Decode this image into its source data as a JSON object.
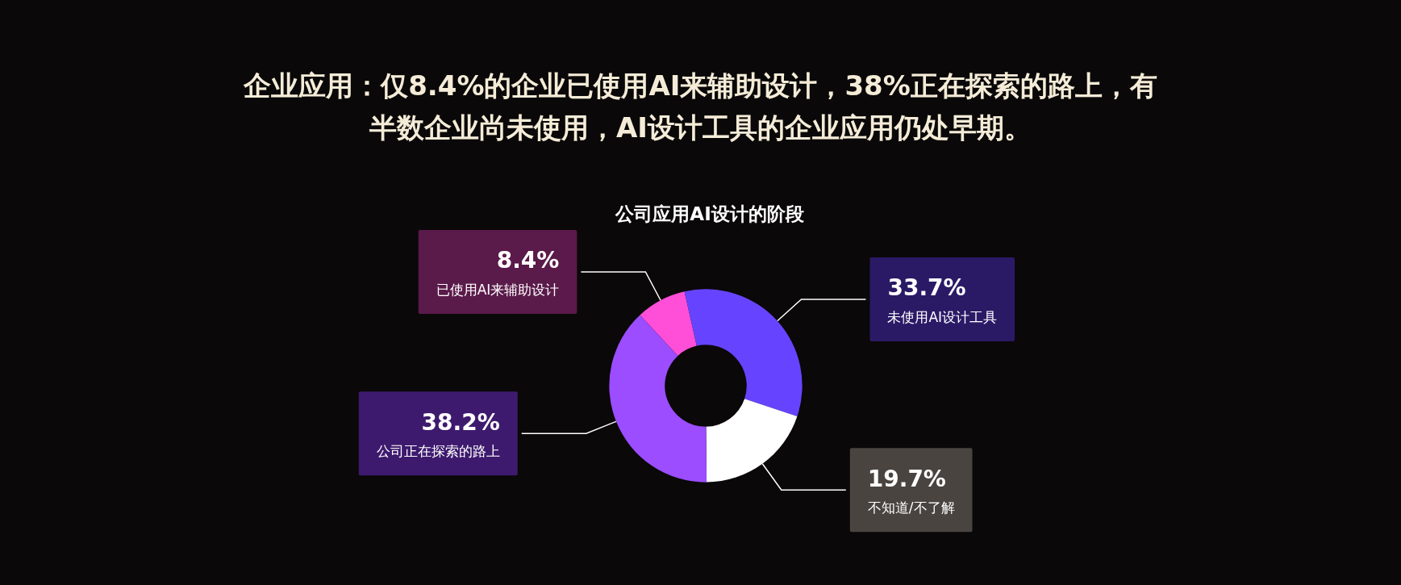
{
  "chart_data": {
    "type": "donut",
    "title": "企业应用：仅8.4%的企业已使用AI来辅助设计，38%正在探索的路上，有半数企业尚未使用，AI设计工具的企业应用仍处早期。",
    "subtitle": "公司应用AI设计的阶段",
    "categories": [
      "已使用AI来辅助设计",
      "未使用AI设计工具",
      "不知道/不了解",
      "公司正在探索的路上"
    ],
    "values": [
      8.4,
      33.7,
      19.7,
      38.2
    ],
    "colors": [
      "#ff4fd8",
      "#6644ff",
      "#ffffff",
      "#9b4dff"
    ],
    "value_labels": [
      "8.4%",
      "33.7%",
      "19.7%",
      "38.2%"
    ],
    "legend": false
  }
}
